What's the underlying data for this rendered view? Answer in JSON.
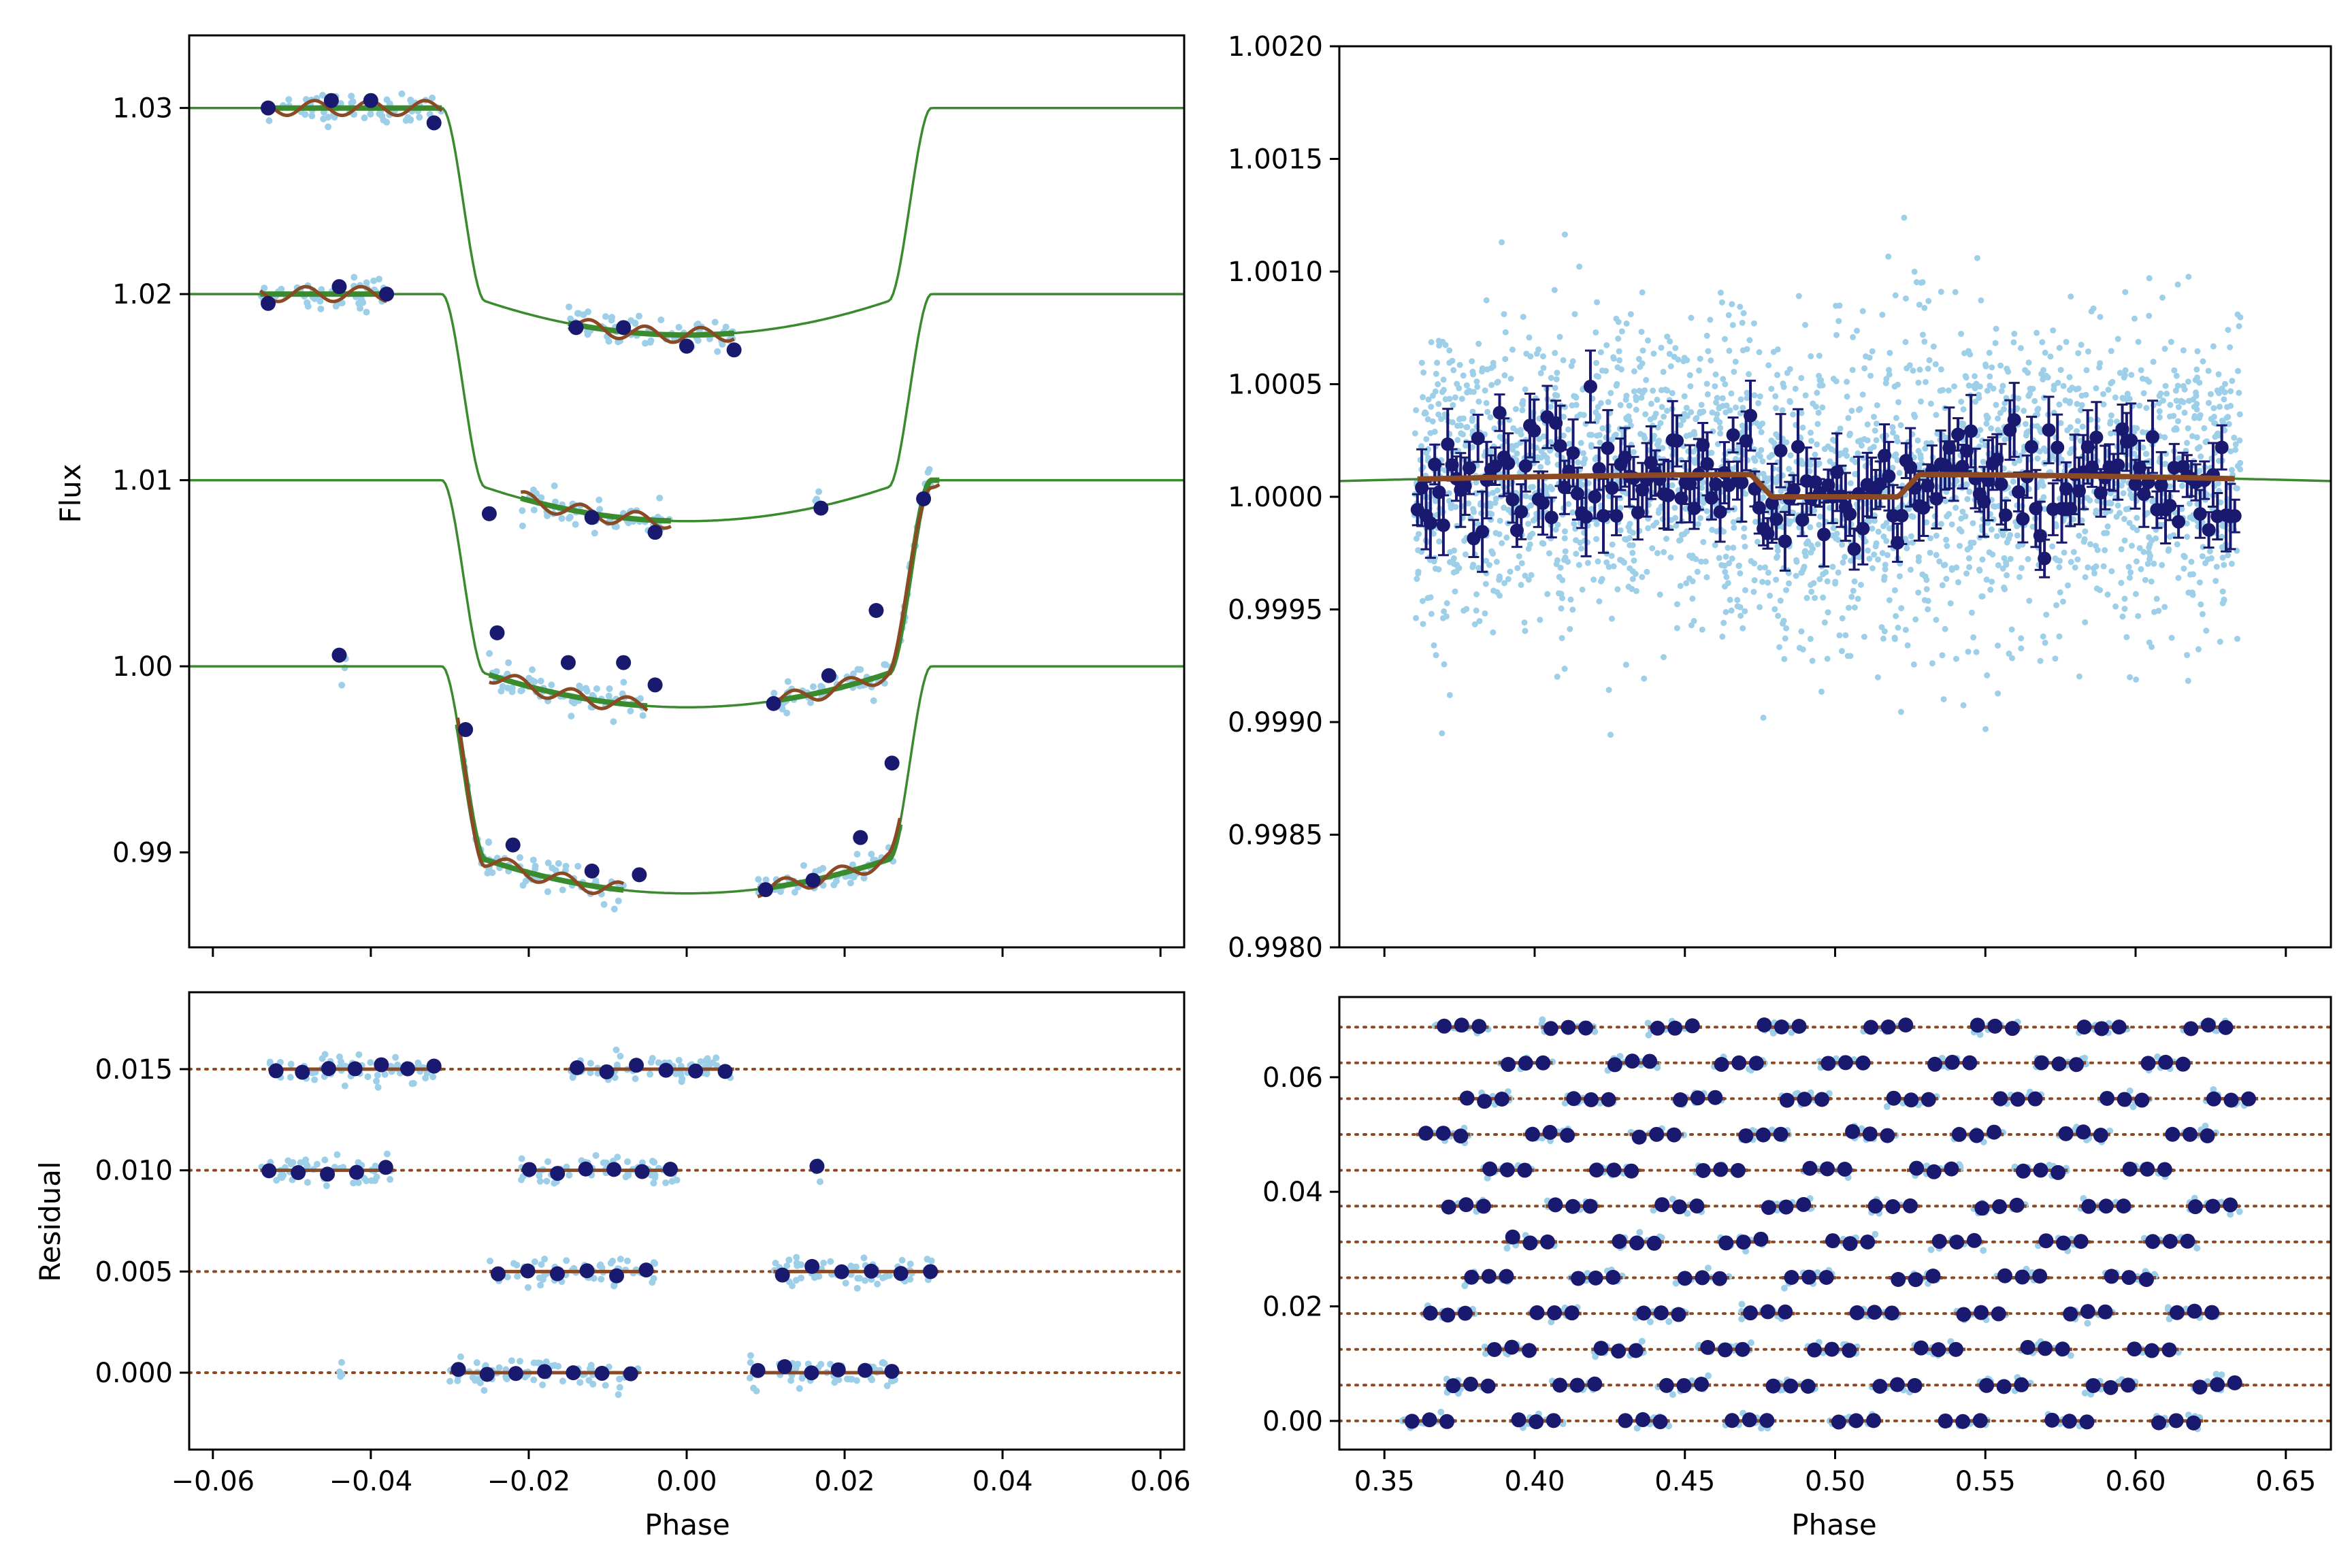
{
  "colors": {
    "raw_points": "#9ecfe9",
    "binned_points": "#191970",
    "model_line": "#3a8a2e",
    "gp_line": "#8b4a23",
    "zero_line": "#8b4a23",
    "axes": "#000000"
  },
  "chart_data": [
    {
      "id": "transit-fit",
      "type": "line",
      "xlabel": "",
      "ylabel": "Flux",
      "xlim": [
        -0.063,
        0.063
      ],
      "ylim": [
        0.9849,
        1.0339
      ],
      "x_ticks": [
        "−0.06",
        "−0.04",
        "−0.02",
        "0.00",
        "0.02",
        "0.04",
        "0.06"
      ],
      "x_ticklabels_shown": false,
      "y_ticks": [
        0.99,
        1.0,
        1.01,
        1.02,
        1.03
      ],
      "y_tick_labels": [
        "0.99",
        "1.00",
        "1.01",
        "1.02",
        "1.03"
      ],
      "series": [
        {
          "offset": 1.03,
          "depth": 0.0122,
          "points": [
            [
              -0.053,
              0.0
            ],
            [
              -0.045,
              0.0004
            ],
            [
              -0.04,
              0.0004
            ],
            [
              -0.032,
              -0.0008
            ],
            [
              -0.014,
              -0.0118
            ],
            [
              -0.008,
              -0.0118
            ],
            [
              0.0,
              -0.0128
            ],
            [
              0.006,
              -0.013
            ]
          ]
        },
        {
          "offset": 1.02,
          "depth": 0.0122,
          "points": [
            [
              -0.053,
              -0.0005
            ],
            [
              -0.044,
              0.0004
            ],
            [
              -0.038,
              0.0
            ],
            [
              -0.025,
              -0.0118
            ],
            [
              -0.012,
              -0.012
            ],
            [
              -0.004,
              -0.0128
            ],
            [
              0.017,
              -0.0115
            ]
          ]
        },
        {
          "offset": 1.01,
          "depth": 0.0122,
          "points": [
            [
              -0.024,
              -0.0082
            ],
            [
              -0.015,
              -0.0098
            ],
            [
              -0.008,
              -0.0098
            ],
            [
              -0.004,
              -0.011
            ],
            [
              0.011,
              -0.012
            ],
            [
              0.018,
              -0.0105
            ],
            [
              0.024,
              -0.007
            ],
            [
              0.03,
              -0.001
            ]
          ]
        },
        {
          "offset": 1.0,
          "depth": 0.0122,
          "points": [
            [
              -0.044,
              0.0006
            ],
            [
              -0.028,
              -0.0034
            ],
            [
              -0.022,
              -0.0096
            ],
            [
              -0.012,
              -0.011
            ],
            [
              -0.006,
              -0.0112
            ],
            [
              0.01,
              -0.012
            ],
            [
              0.016,
              -0.0115
            ],
            [
              0.022,
              -0.0092
            ],
            [
              0.026,
              -0.0052
            ]
          ]
        }
      ]
    },
    {
      "id": "eclipse-fit",
      "type": "scatter",
      "xlabel": "",
      "ylabel": "",
      "xlim": [
        0.335,
        0.665
      ],
      "ylim": [
        0.998,
        1.002
      ],
      "x_ticks": [
        0.35,
        0.4,
        0.45,
        0.5,
        0.55,
        0.6,
        0.65
      ],
      "x_ticklabels_shown": false,
      "y_ticks": [
        0.998,
        0.9985,
        0.999,
        0.9995,
        1.0,
        1.0005,
        1.001,
        1.0015,
        1.002
      ],
      "y_tick_labels": [
        "0.9980",
        "0.9985",
        "0.9990",
        "0.9995",
        "1.0000",
        "1.0005",
        "1.0010",
        "1.0015",
        "1.0020"
      ],
      "eclipse": {
        "baseline": 1.0001,
        "ingress": [
          0.472,
          0.479
        ],
        "egress": [
          0.521,
          0.528
        ],
        "depth": 0.0001
      }
    },
    {
      "id": "transit-residuals",
      "type": "scatter",
      "xlabel": "Phase",
      "ylabel": "Residual",
      "xlim": [
        -0.063,
        0.063
      ],
      "ylim": [
        -0.0038,
        0.0188
      ],
      "x_ticks": [
        -0.06,
        -0.04,
        -0.02,
        0.0,
        0.02,
        0.04,
        0.06
      ],
      "x_tick_labels": [
        "−0.06",
        "−0.04",
        "−0.02",
        "0.00",
        "0.02",
        "0.04",
        "0.06"
      ],
      "y_ticks": [
        0.0,
        0.005,
        0.01,
        0.015
      ],
      "y_tick_labels": [
        "0.000",
        "0.005",
        "0.010",
        "0.015"
      ],
      "offsets": [
        0.0,
        0.005,
        0.01,
        0.015
      ]
    },
    {
      "id": "eclipse-residuals",
      "type": "scatter",
      "xlabel": "Phase",
      "ylabel": "",
      "xlim": [
        0.335,
        0.665
      ],
      "ylim": [
        -0.005,
        0.074
      ],
      "x_ticks": [
        0.35,
        0.4,
        0.45,
        0.5,
        0.55,
        0.6,
        0.65
      ],
      "x_tick_labels": [
        "0.35",
        "0.40",
        "0.45",
        "0.50",
        "0.55",
        "0.60",
        "0.65"
      ],
      "y_ticks": [
        0.0,
        0.02,
        0.04,
        0.06
      ],
      "y_tick_labels": [
        "0.00",
        "0.02",
        "0.04",
        "0.06"
      ],
      "offsets": [
        0.0,
        0.00625,
        0.0125,
        0.01875,
        0.025,
        0.03125,
        0.0375,
        0.04375,
        0.05,
        0.05625,
        0.0625,
        0.06875
      ]
    }
  ]
}
